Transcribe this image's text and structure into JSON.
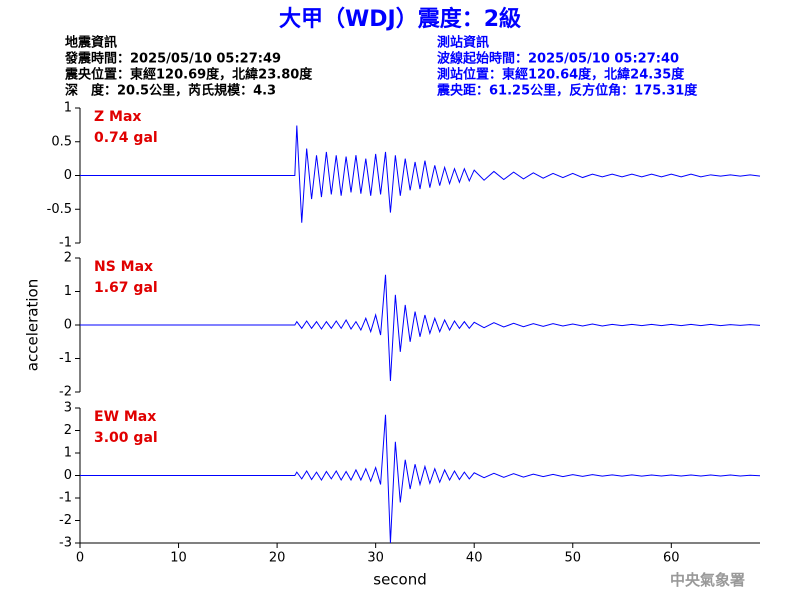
{
  "header": {
    "title": "大甲（WDJ）震度：2級",
    "left": [
      "地震資訊",
      "發震時間：2025/05/10 05:27:49",
      "震央位置：東經120.69度，北緯23.80度",
      "深　度：20.5公里，芮氏規模：4.3"
    ],
    "right": [
      "測站資訊",
      "波線起始時間：2025/05/10 05:27:40",
      "測站位置：東經120.64度，北緯24.35度",
      "震央距：61.25公里，反方位角：175.31度"
    ],
    "footer": "中央氣象署"
  },
  "chart_data": [
    {
      "type": "line",
      "annotation": [
        "Z Max",
        "0.74 gal"
      ],
      "color": "#0000ff",
      "xlim": [
        0,
        69
      ],
      "ylim": [
        -1,
        1
      ],
      "yticks": [
        -1,
        -0.5,
        0,
        0.5,
        1
      ],
      "x": [
        0,
        21.8,
        22,
        22.5,
        23,
        23.5,
        24,
        24.5,
        25,
        25.5,
        26,
        26.5,
        27,
        27.5,
        28,
        28.5,
        29,
        29.5,
        30,
        30.5,
        31,
        31.5,
        32,
        32.5,
        33,
        33.5,
        34,
        34.5,
        35,
        35.5,
        36,
        36.5,
        37,
        37.5,
        38,
        38.5,
        39,
        39.5,
        40,
        41,
        42,
        43,
        44,
        45,
        46,
        47,
        48,
        49,
        50,
        51,
        52,
        53,
        54,
        55,
        56,
        57,
        58,
        59,
        60,
        61,
        62,
        63,
        64,
        65,
        66,
        67,
        68,
        69
      ],
      "values": [
        0,
        0,
        0.74,
        -0.7,
        0.4,
        -0.35,
        0.3,
        -0.32,
        0.35,
        -0.28,
        0.3,
        -0.3,
        0.28,
        -0.25,
        0.3,
        -0.27,
        0.25,
        -0.3,
        0.32,
        -0.28,
        0.35,
        -0.55,
        0.3,
        -0.3,
        0.25,
        -0.22,
        0.2,
        -0.2,
        0.22,
        -0.18,
        0.15,
        -0.15,
        0.12,
        -0.12,
        0.1,
        -0.1,
        0.1,
        -0.08,
        0.08,
        -0.07,
        0.06,
        -0.06,
        0.05,
        -0.05,
        0.04,
        -0.04,
        0.03,
        -0.03,
        0.03,
        -0.03,
        0.02,
        -0.02,
        0.02,
        -0.02,
        0.02,
        -0.02,
        0.02,
        -0.02,
        0.02,
        -0.02,
        0.02,
        -0.02,
        0.01,
        -0.01,
        0.01,
        -0.01,
        0.01,
        -0.01
      ]
    },
    {
      "type": "line",
      "annotation": [
        "NS Max",
        "1.67 gal"
      ],
      "color": "#0000ff",
      "ylabel": "acceleration",
      "xlim": [
        0,
        69
      ],
      "ylim": [
        -2,
        2
      ],
      "yticks": [
        -2,
        -1,
        0,
        1,
        2
      ],
      "x": [
        0,
        21.8,
        22,
        22.5,
        23,
        23.5,
        24,
        24.5,
        25,
        25.5,
        26,
        26.5,
        27,
        27.5,
        28,
        28.5,
        29,
        29.5,
        30,
        30.5,
        31,
        31.5,
        32,
        32.5,
        33,
        33.5,
        34,
        34.5,
        35,
        35.5,
        36,
        36.5,
        37,
        37.5,
        38,
        38.5,
        39,
        39.5,
        40,
        41,
        42,
        43,
        44,
        45,
        46,
        47,
        48,
        49,
        50,
        51,
        52,
        53,
        54,
        55,
        56,
        57,
        58,
        59,
        60,
        61,
        62,
        63,
        64,
        65,
        66,
        67,
        68,
        69
      ],
      "values": [
        0,
        0,
        0.1,
        -0.1,
        0.12,
        -0.1,
        0.1,
        -0.12,
        0.1,
        -0.1,
        0.12,
        -0.1,
        0.15,
        -0.12,
        0.1,
        -0.15,
        0.2,
        -0.2,
        0.3,
        -0.3,
        1.5,
        -1.67,
        0.9,
        -0.8,
        0.6,
        -0.5,
        0.4,
        -0.35,
        0.3,
        -0.25,
        0.2,
        -0.2,
        0.15,
        -0.15,
        0.12,
        -0.1,
        0.1,
        -0.1,
        0.08,
        -0.08,
        0.07,
        -0.06,
        0.05,
        -0.05,
        0.04,
        -0.04,
        0.04,
        -0.03,
        0.03,
        -0.03,
        0.03,
        -0.03,
        0.02,
        -0.02,
        0.02,
        -0.02,
        0.02,
        -0.02,
        0.02,
        -0.02,
        0.02,
        -0.02,
        0.02,
        -0.02,
        0.01,
        -0.01,
        0.01,
        -0.01
      ]
    },
    {
      "type": "line",
      "annotation": [
        "EW Max",
        "3.00 gal"
      ],
      "color": "#0000ff",
      "xlabel": "second",
      "xlim": [
        0,
        69
      ],
      "xticks": [
        0,
        10,
        20,
        30,
        40,
        50,
        60
      ],
      "ylim": [
        -3,
        3
      ],
      "yticks": [
        -3,
        -2,
        -1,
        0,
        1,
        2,
        3
      ],
      "x": [
        0,
        21.8,
        22,
        22.5,
        23,
        23.5,
        24,
        24.5,
        25,
        25.5,
        26,
        26.5,
        27,
        27.5,
        28,
        28.5,
        29,
        29.5,
        30,
        30.5,
        31,
        31.5,
        32,
        32.5,
        33,
        33.5,
        34,
        34.5,
        35,
        35.5,
        36,
        36.5,
        37,
        37.5,
        38,
        38.5,
        39,
        39.5,
        40,
        41,
        42,
        43,
        44,
        45,
        46,
        47,
        48,
        49,
        50,
        51,
        52,
        53,
        54,
        55,
        56,
        57,
        58,
        59,
        60,
        61,
        62,
        63,
        64,
        65,
        66,
        67,
        68,
        69
      ],
      "values": [
        0,
        0,
        0.15,
        -0.15,
        0.2,
        -0.18,
        0.15,
        -0.2,
        0.18,
        -0.15,
        0.2,
        -0.2,
        0.18,
        -0.2,
        0.25,
        -0.2,
        0.3,
        -0.25,
        0.35,
        -0.4,
        2.7,
        -3.0,
        1.5,
        -1.2,
        0.7,
        -0.6,
        0.5,
        -0.4,
        0.4,
        -0.35,
        0.3,
        -0.3,
        0.25,
        -0.2,
        0.2,
        -0.18,
        0.15,
        -0.15,
        0.12,
        -0.1,
        0.1,
        -0.08,
        0.08,
        -0.07,
        0.06,
        -0.05,
        0.05,
        -0.05,
        0.04,
        -0.04,
        0.04,
        -0.03,
        0.03,
        -0.03,
        0.03,
        -0.03,
        0.02,
        -0.02,
        0.02,
        -0.02,
        0.02,
        -0.02,
        0.02,
        -0.02,
        0.02,
        -0.02,
        0.01,
        -0.01
      ]
    }
  ]
}
